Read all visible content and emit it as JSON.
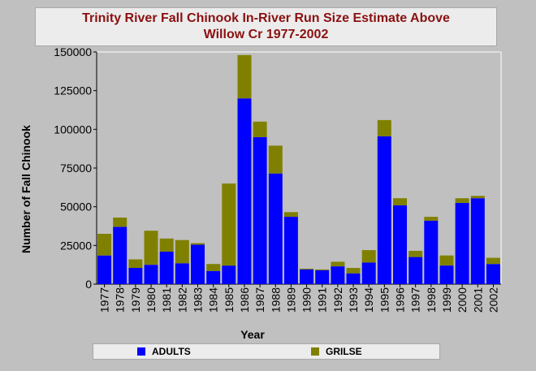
{
  "chart_data": {
    "type": "bar",
    "stacked": true,
    "title_line1": "Trinity River Fall Chinook In-River Run Size Estimate Above",
    "title_line2": "Willow Cr 1977-2002",
    "xlabel": "Year",
    "ylabel": "Number of Fall Chinook",
    "ylim": [
      0,
      150000
    ],
    "yticks": [
      "0",
      "25000",
      "50000",
      "75000",
      "100000",
      "125000",
      "150000"
    ],
    "ytick_values": [
      0,
      25000,
      50000,
      75000,
      100000,
      125000,
      150000
    ],
    "grid": false,
    "legend_position": "bottom",
    "categories": [
      "1977",
      "1978",
      "1979",
      "1980",
      "1981",
      "1982",
      "1983",
      "1984",
      "1985",
      "1986",
      "1987",
      "1988",
      "1989",
      "1990",
      "1991",
      "1992",
      "1993",
      "1994",
      "1995",
      "1996",
      "1997",
      "1998",
      "1999",
      "2000",
      "2001",
      "2002"
    ],
    "series": [
      {
        "name": "ADULTS",
        "color": "#0000ff",
        "values": [
          18500,
          37000,
          10500,
          12500,
          21000,
          13500,
          25500,
          8500,
          12000,
          120000,
          95000,
          71500,
          43500,
          9500,
          9000,
          11500,
          7000,
          14000,
          95500,
          51000,
          17500,
          41000,
          12000,
          52500,
          55500,
          13000
        ]
      },
      {
        "name": "GRILSE",
        "color": "#808000",
        "values": [
          14000,
          6000,
          5500,
          22000,
          8500,
          15000,
          1000,
          4500,
          53000,
          28000,
          10000,
          18000,
          3000,
          500,
          500,
          3000,
          3500,
          8000,
          10500,
          4500,
          4000,
          2500,
          6500,
          3000,
          1500,
          4000
        ]
      }
    ]
  },
  "colors": {
    "background": "#c0c0c0",
    "plot_background": "#c0c0c0",
    "title_color": "#8b1010"
  }
}
